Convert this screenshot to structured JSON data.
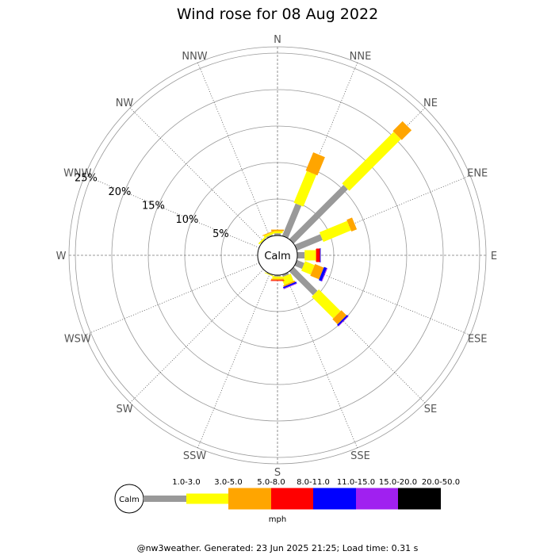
{
  "chart_data": {
    "type": "wind_rose",
    "title": "Wind rose for 08 Aug 2022",
    "calm_label": "Calm",
    "directions": [
      "N",
      "NNE",
      "NE",
      "ENE",
      "E",
      "ESE",
      "SE",
      "SSE",
      "S",
      "SSW",
      "SW",
      "WSW",
      "W",
      "WNW",
      "NW",
      "NNW"
    ],
    "ring_percent": [
      5,
      10,
      15,
      20,
      25
    ],
    "ring_labels": [
      "5%",
      "10%",
      "15%",
      "20%",
      "25%"
    ],
    "legend_unit": "mph",
    "bins": [
      {
        "label": "1.0-3.0",
        "color": "#999999"
      },
      {
        "label": "3.0-5.0",
        "color": "#ffff00"
      },
      {
        "label": "5.0-8.0",
        "color": "#ffa500"
      },
      {
        "label": "8.0-11.0",
        "color": "#ff0000"
      },
      {
        "label": "11.0-15.0",
        "color": "#0000ff"
      },
      {
        "label": "15.0-20.0",
        "color": "#a020f0"
      },
      {
        "label": "20.0-50.0",
        "color": "#000000"
      }
    ],
    "series": [
      {
        "direction": "N",
        "cumulative": [
          0.3,
          0.6,
          0.8,
          0.8,
          0.8,
          0.8,
          0.8
        ]
      },
      {
        "direction": "NNE",
        "cumulative": [
          4.8,
          9.5,
          12.2,
          12.2,
          12.2,
          12.2,
          12.2
        ]
      },
      {
        "direction": "NE",
        "cumulative": [
          10.5,
          20.5,
          22.4,
          22.4,
          22.4,
          22.4,
          22.4
        ]
      },
      {
        "direction": "ENE",
        "cumulative": [
          3.8,
          7.9,
          8.7,
          8.7,
          8.7,
          8.7,
          8.7
        ]
      },
      {
        "direction": "E",
        "cumulative": [
          1.0,
          2.5,
          2.6,
          3.1,
          3.2,
          3.2,
          3.2
        ]
      },
      {
        "direction": "ESE",
        "cumulative": [
          1.1,
          2.5,
          3.8,
          3.8,
          4.2,
          4.3,
          4.3
        ]
      },
      {
        "direction": "SE",
        "cumulative": [
          4.6,
          8.8,
          9.8,
          9.8,
          10.0,
          10.1,
          10.1
        ]
      },
      {
        "direction": "SSE",
        "cumulative": [
          0.3,
          1.4,
          1.6,
          1.6,
          1.8,
          1.9,
          1.9
        ]
      },
      {
        "direction": "S",
        "cumulative": [
          0.2,
          0.5,
          0.7,
          0.8,
          0.8,
          0.8,
          0.8
        ]
      },
      {
        "direction": "SSW",
        "cumulative": [
          0.1,
          0.2,
          0.2,
          0.2,
          0.2,
          0.2,
          0.2
        ]
      },
      {
        "direction": "SW",
        "cumulative": [
          0,
          0,
          0,
          0,
          0,
          0,
          0
        ]
      },
      {
        "direction": "WSW",
        "cumulative": [
          0,
          0,
          0,
          0,
          0,
          0,
          0
        ]
      },
      {
        "direction": "W",
        "cumulative": [
          0,
          0,
          0,
          0,
          0,
          0,
          0
        ]
      },
      {
        "direction": "WNW",
        "cumulative": [
          0,
          0,
          0,
          0,
          0,
          0,
          0
        ]
      },
      {
        "direction": "NW",
        "cumulative": [
          0.1,
          0.3,
          0.3,
          0.3,
          0.3,
          0.3,
          0.3
        ]
      },
      {
        "direction": "NNW",
        "cumulative": [
          0.2,
          0.5,
          0.6,
          0.6,
          0.6,
          0.6,
          0.6
        ]
      }
    ]
  },
  "footer": "@nw3weather. Generated: 23 Jun 2025 21:25; Load time: 0.31 s"
}
